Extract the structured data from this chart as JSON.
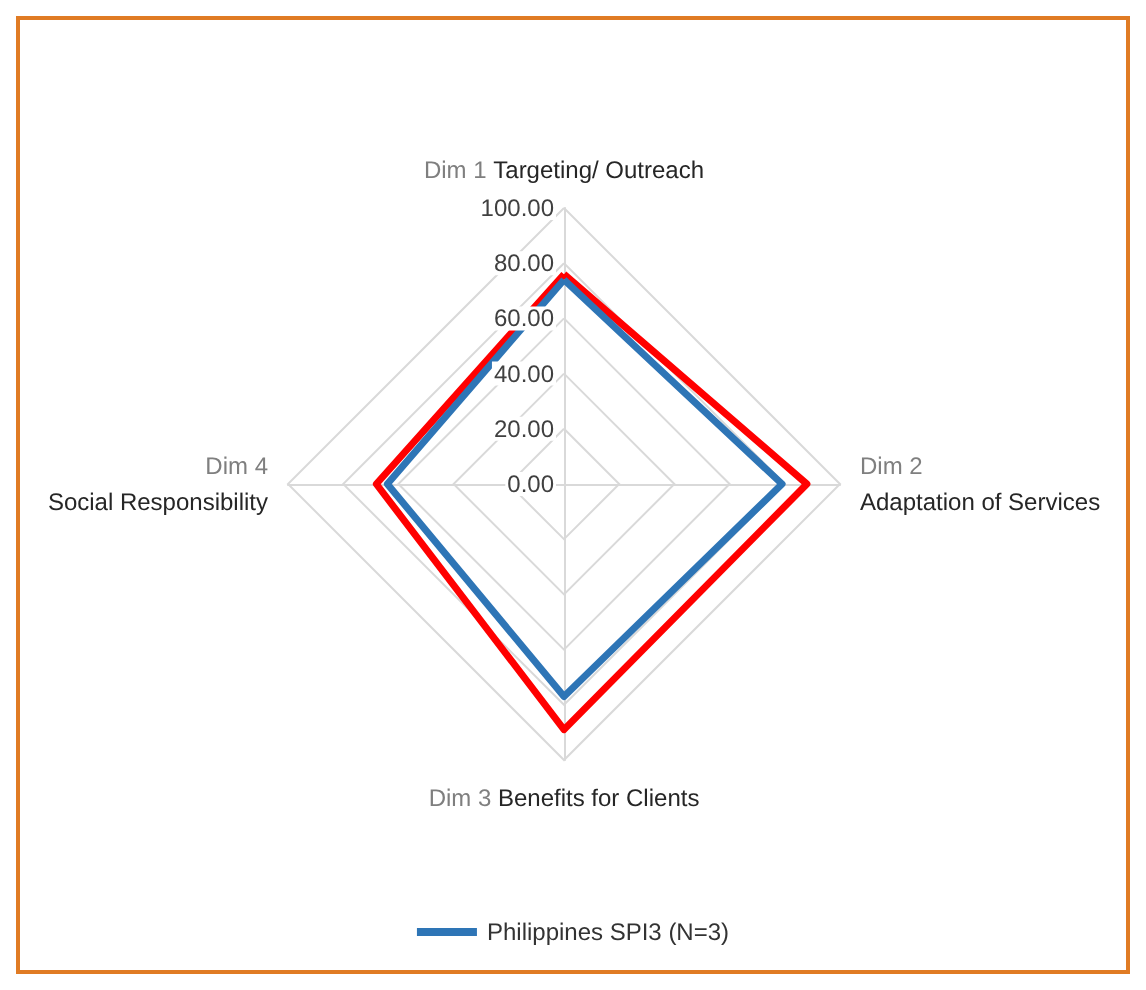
{
  "chart_data": {
    "type": "radar",
    "categories": [
      "Dim 1 Targeting/ Outreach",
      "Dim 2 Adaptation of Services",
      "Dim 3 Benefits for Clients",
      "Dim 4 Social Responsibility"
    ],
    "series": [
      {
        "color": "#ff0000",
        "values": [
          76,
          88,
          89,
          68
        ]
      },
      {
        "name": "Philippines SPI3 (N=3)",
        "color": "#2e75b6",
        "values": [
          74,
          79,
          77,
          64
        ]
      }
    ],
    "ylim": [
      0,
      100
    ],
    "yticks": [
      {
        "value": 0,
        "label": "0.00"
      },
      {
        "value": 20,
        "label": "20.00"
      },
      {
        "value": 40,
        "label": "40.00"
      },
      {
        "value": 60,
        "label": "60.00"
      },
      {
        "value": 80,
        "label": "80.00"
      },
      {
        "value": 100,
        "label": "100.00"
      }
    ],
    "grid": true,
    "legend": "bottom",
    "marker": "none",
    "line_style": "solid"
  }
}
